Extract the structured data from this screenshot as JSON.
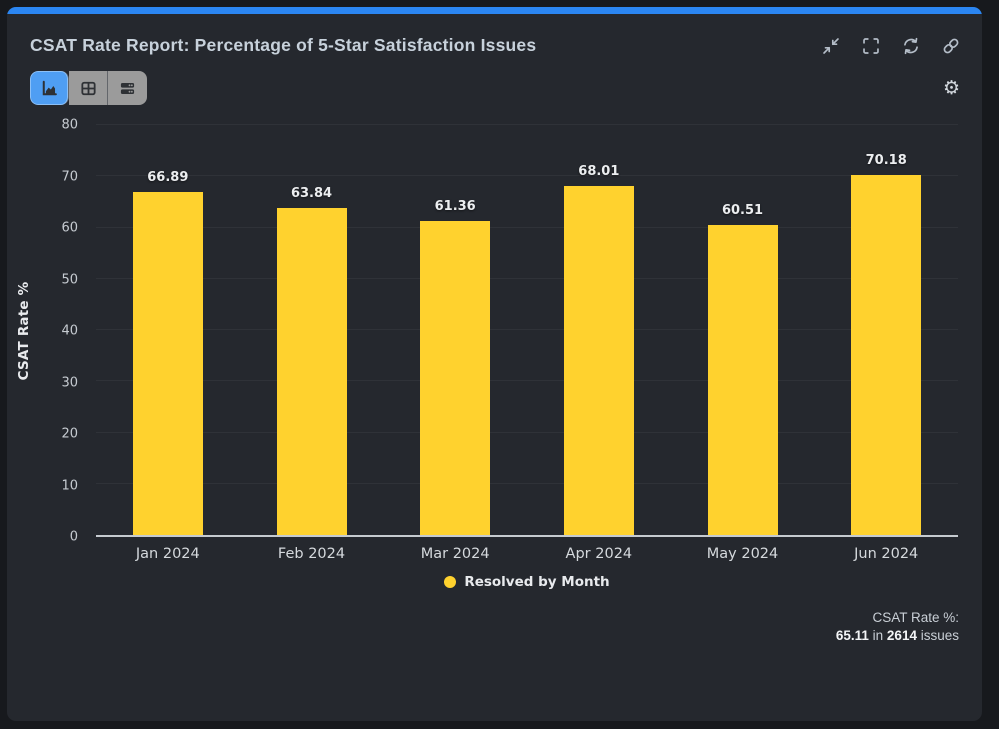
{
  "header": {
    "title": "CSAT Rate Report: Percentage of 5-Star Satisfaction Issues",
    "action_icons": [
      "collapse-icon",
      "fullscreen-icon",
      "refresh-icon",
      "link-icon"
    ]
  },
  "toolbar": {
    "view_buttons": [
      {
        "icon": "area-chart-icon",
        "active": true
      },
      {
        "icon": "table-icon",
        "active": false
      },
      {
        "icon": "list-icon",
        "active": false
      }
    ],
    "settings_icon": "gear-icon"
  },
  "chart_data": {
    "type": "bar",
    "categories": [
      "Jan 2024",
      "Feb 2024",
      "Mar 2024",
      "Apr 2024",
      "May 2024",
      "Jun 2024"
    ],
    "values": [
      66.89,
      63.84,
      61.36,
      68.01,
      60.51,
      70.18
    ],
    "series_name": "Resolved by Month",
    "title": "CSAT Rate Report: Percentage of 5-Star Satisfaction Issues",
    "xlabel": "",
    "ylabel": "CSAT Rate %",
    "ylim": [
      0,
      80
    ],
    "yticks": [
      0,
      10,
      20,
      30,
      40,
      50,
      60,
      70,
      80
    ],
    "grid": "on",
    "legend_position": "bottom",
    "bar_color": "#FFD22E"
  },
  "legend": {
    "label": "Resolved by Month"
  },
  "footer": {
    "label": "CSAT Rate %:",
    "value": "65.11",
    "in_word": "in",
    "count": "2614",
    "issues_word": "issues"
  },
  "colors": {
    "accent": "#2B86F2",
    "bar": "#FFD22E",
    "active_button": "#4F9EF3",
    "button_gray": "#9B9B9B",
    "card_bg": "#25282E",
    "page_bg": "#17191D"
  }
}
